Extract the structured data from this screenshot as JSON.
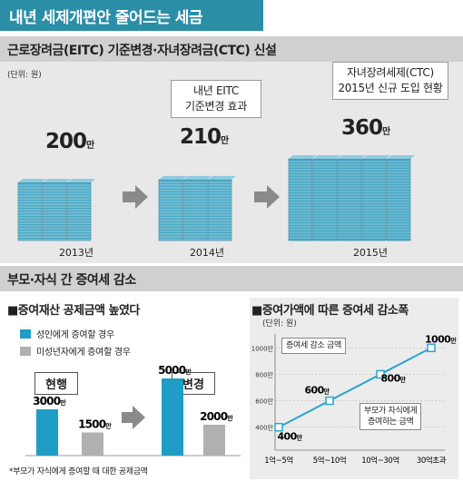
{
  "title": "내년 세제개편안 줄어드는 세금",
  "section1": {
    "heading": "근로장려금(EITC) 기준변경·자녀장려금(CTC) 신설",
    "unit": "(단위: 원)",
    "callout_2014_line1": "내년 EITC",
    "callout_2014_line2": "기준변경 효과",
    "callout_2015_line1": "자녀장려세제(CTC)",
    "callout_2015_line2": "2015년 신규 도입 현황",
    "value_suffix": "만"
  },
  "section2": {
    "heading": "부모·자식 간 증여세 감소",
    "left_title": "■증여재산 공제금액 높였다",
    "legend_adult": "성인에게 증여할 경우",
    "legend_minor": "미성년자에게 증여할 경우",
    "label_current": "현행",
    "label_change": "변경",
    "footnote": "*부모가 자식에게 증여할 때 대한 공제금액",
    "right_title": "■증여가액에 따른 증여세 감소폭",
    "right_unit": "(단위: 원)",
    "line_note1": "증여세 감소 금액",
    "line_note2_line1": "부모가 자식에게",
    "line_note2_line2": "증여하는 금액"
  },
  "colors": {
    "accent": "#2a8ea7",
    "bar_adult": "#1f9dc4",
    "bar_minor": "#b0b0b0",
    "line": "#2aa5cf",
    "stack": "#4aa8c5"
  },
  "chart_data": [
    {
      "type": "bar",
      "title": "근로장려금(EITC) 기준변경·자녀장려금(CTC) 신설",
      "unit": "(단위: 원)",
      "categories": [
        "2013년",
        "2014년",
        "2015년"
      ],
      "values": [
        200,
        210,
        360
      ],
      "value_labels": [
        "200",
        "210",
        "360"
      ]
    },
    {
      "type": "bar",
      "title": "■증여재산 공제금액 높였다",
      "categories": [
        "현행",
        "변경"
      ],
      "series": [
        {
          "name": "성인에게 증여할 경우",
          "values": [
            3000,
            5000
          ],
          "labels": [
            "3000",
            "5000"
          ]
        },
        {
          "name": "미성년자에게 증여할 경우",
          "values": [
            1500,
            2000
          ],
          "labels": [
            "1500",
            "2000"
          ]
        }
      ]
    },
    {
      "type": "line",
      "title": "■증여가액에 따른 증여세 감소폭",
      "unit": "(단위: 원)",
      "x": [
        "1억~5억",
        "5억~10억",
        "10억~30억",
        "30억초과"
      ],
      "values": [
        400,
        600,
        800,
        1000
      ],
      "value_labels": [
        "400",
        "600",
        "800",
        "1000"
      ],
      "yticks": [
        "400만",
        "600만",
        "800만",
        "1000만"
      ],
      "ylim": [
        350,
        1050
      ]
    }
  ]
}
